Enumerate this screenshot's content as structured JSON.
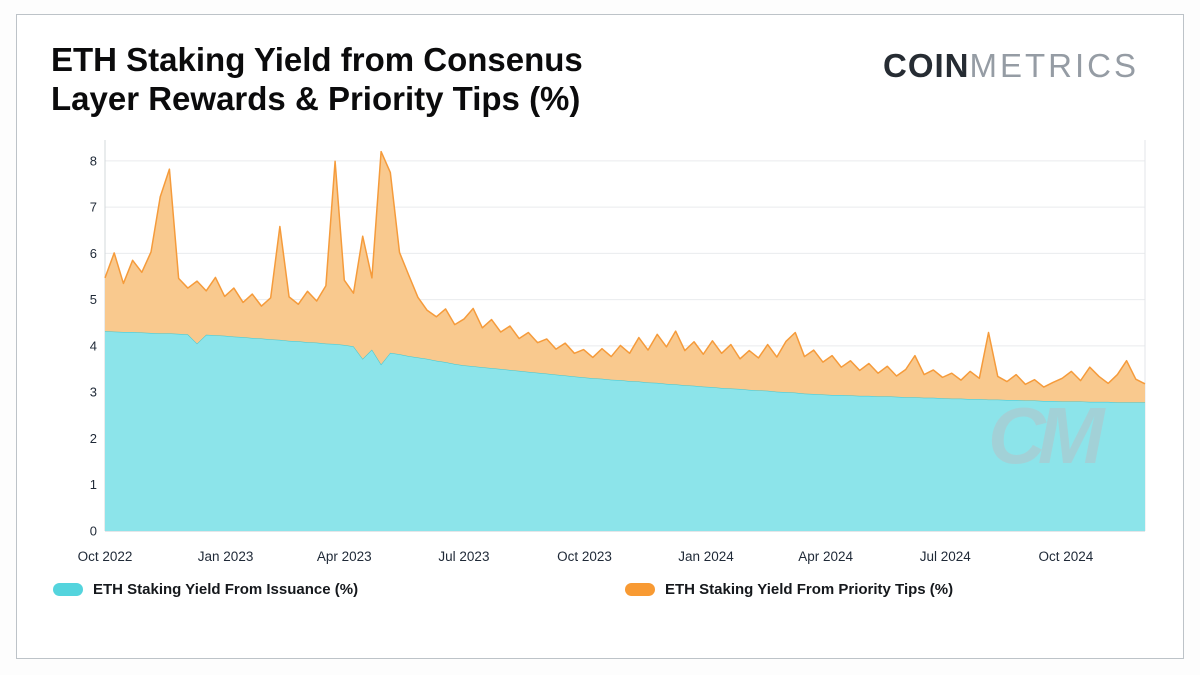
{
  "header": {
    "title_line1": "ETH Staking Yield from Consenus",
    "title_line2": "Layer Rewards & Priority Tips (%)",
    "logo": {
      "part1": "COIN",
      "part2": "METRICS"
    }
  },
  "watermark": "CM",
  "legend": [
    {
      "label": "ETH Staking Yield From Issuance (%)",
      "color": "#54d4dd"
    },
    {
      "label": "ETH Staking Yield From Priority Tips (%)",
      "color": "#f89a33"
    }
  ],
  "colors": {
    "issuance_fill": "#8ce4ea",
    "issuance_stroke": "#3ec6d0",
    "tips_fill": "#f9c98e",
    "tips_stroke": "#f59b3b",
    "grid": "#e9ebee",
    "axis": "#c9ced3",
    "tick_text": "#1f2937",
    "watermark": "#b9c0c5"
  },
  "chart_data": {
    "type": "area",
    "stacked": true,
    "title": "ETH Staking Yield from Consenus Layer Rewards & Priority Tips (%)",
    "xlabel": "",
    "ylabel": "",
    "x_unit": "weeks since Oct 2022 (index)",
    "ylim": [
      0,
      8.45
    ],
    "grid": "horizontal",
    "legend_position": "bottom",
    "y_ticks": [
      0,
      1,
      2,
      3,
      4,
      5,
      6,
      7,
      8
    ],
    "x_ticks": [
      {
        "label": "Oct 2022",
        "week": 0
      },
      {
        "label": "Jan 2023",
        "week": 13.1
      },
      {
        "label": "Apr 2023",
        "week": 26.0
      },
      {
        "label": "Jul 2023",
        "week": 39.0
      },
      {
        "label": "Oct 2023",
        "week": 52.1
      },
      {
        "label": "Jan 2024",
        "week": 65.3
      },
      {
        "label": "Apr 2024",
        "week": 78.3
      },
      {
        "label": "Jul 2024",
        "week": 91.3
      },
      {
        "label": "Oct 2024",
        "week": 104.4
      }
    ],
    "series": [
      {
        "name": "ETH Staking Yield From Issuance (%)",
        "values": [
          4.32,
          4.31,
          4.3,
          4.3,
          4.29,
          4.28,
          4.27,
          4.27,
          4.26,
          4.25,
          4.05,
          4.24,
          4.23,
          4.22,
          4.2,
          4.19,
          4.17,
          4.16,
          4.14,
          4.13,
          4.11,
          4.1,
          4.08,
          4.07,
          4.05,
          4.04,
          4.02,
          3.99,
          3.72,
          3.92,
          3.6,
          3.85,
          3.82,
          3.78,
          3.75,
          3.72,
          3.68,
          3.65,
          3.61,
          3.58,
          3.56,
          3.54,
          3.52,
          3.5,
          3.48,
          3.46,
          3.44,
          3.42,
          3.4,
          3.38,
          3.36,
          3.34,
          3.32,
          3.3,
          3.29,
          3.27,
          3.26,
          3.24,
          3.23,
          3.21,
          3.2,
          3.18,
          3.17,
          3.15,
          3.14,
          3.12,
          3.11,
          3.09,
          3.08,
          3.07,
          3.05,
          3.04,
          3.03,
          3.01,
          3.0,
          2.99,
          2.97,
          2.96,
          2.95,
          2.94,
          2.94,
          2.93,
          2.92,
          2.92,
          2.91,
          2.91,
          2.9,
          2.89,
          2.89,
          2.88,
          2.88,
          2.87,
          2.86,
          2.86,
          2.85,
          2.85,
          2.84,
          2.84,
          2.83,
          2.83,
          2.82,
          2.82,
          2.81,
          2.81,
          2.8,
          2.8,
          2.8,
          2.79,
          2.79,
          2.79,
          2.78,
          2.78,
          2.78,
          2.78
        ]
      },
      {
        "name": "ETH Staking Yield From Priority Tips (%)",
        "values": [
          1.15,
          1.7,
          1.05,
          1.55,
          1.3,
          1.75,
          2.95,
          3.55,
          1.2,
          1.0,
          1.35,
          0.95,
          1.25,
          0.85,
          1.05,
          0.75,
          0.95,
          0.7,
          0.9,
          2.45,
          0.95,
          0.8,
          1.1,
          0.9,
          1.25,
          3.95,
          1.4,
          1.15,
          2.65,
          1.55,
          4.6,
          3.9,
          2.2,
          1.75,
          1.3,
          1.05,
          0.95,
          1.15,
          0.85,
          1.0,
          1.25,
          0.85,
          1.05,
          0.8,
          0.95,
          0.7,
          0.85,
          0.65,
          0.75,
          0.55,
          0.7,
          0.5,
          0.6,
          0.45,
          0.65,
          0.5,
          0.75,
          0.6,
          0.95,
          0.7,
          1.05,
          0.8,
          1.15,
          0.75,
          0.95,
          0.7,
          1.0,
          0.75,
          0.95,
          0.65,
          0.85,
          0.7,
          1.0,
          0.75,
          1.1,
          1.3,
          0.8,
          0.95,
          0.7,
          0.85,
          0.6,
          0.75,
          0.55,
          0.7,
          0.5,
          0.65,
          0.45,
          0.6,
          0.9,
          0.5,
          0.6,
          0.45,
          0.55,
          0.4,
          0.6,
          0.45,
          1.45,
          0.5,
          0.4,
          0.55,
          0.35,
          0.45,
          0.3,
          0.4,
          0.5,
          0.65,
          0.45,
          0.75,
          0.55,
          0.4,
          0.6,
          0.9,
          0.5,
          0.4
        ]
      }
    ]
  }
}
